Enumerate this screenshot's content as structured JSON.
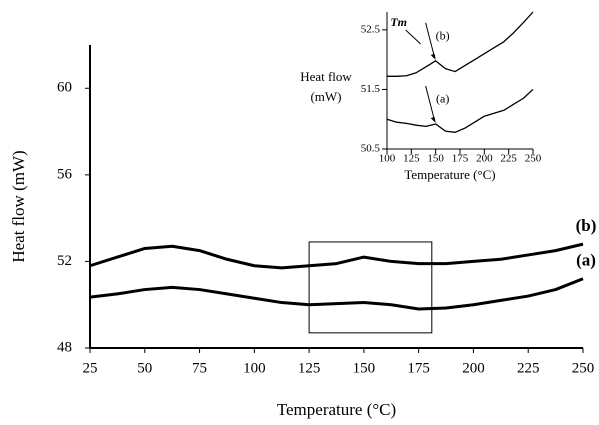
{
  "chart_data": [
    {
      "type": "line",
      "xlabel": "Temperature (°C)",
      "ylabel": "Heat flow (mW)",
      "x": [
        25,
        37.5,
        50,
        62.5,
        75,
        87.5,
        100,
        112.5,
        125,
        137.5,
        150,
        162.5,
        175,
        187.5,
        200,
        212.5,
        225,
        237.5,
        250
      ],
      "series": [
        {
          "name": "(b)",
          "color": "#000000",
          "values": [
            51.8,
            52.2,
            52.6,
            52.7,
            52.5,
            52.1,
            51.8,
            51.7,
            51.8,
            51.9,
            52.2,
            52.0,
            51.9,
            51.9,
            52.0,
            52.1,
            52.3,
            52.5,
            52.8
          ]
        },
        {
          "name": "(a)",
          "color": "#000000",
          "values": [
            50.35,
            50.5,
            50.7,
            50.8,
            50.7,
            50.5,
            50.3,
            50.1,
            50.0,
            50.05,
            50.1,
            50.0,
            49.8,
            49.85,
            50.0,
            50.2,
            50.4,
            50.7,
            51.2
          ]
        }
      ],
      "highlight": {
        "x": [
          125,
          181
        ],
        "y": [
          48.7,
          52.9
        ]
      },
      "xlim": [
        25,
        250
      ],
      "xticks": [
        25,
        50,
        75,
        100,
        125,
        150,
        175,
        200,
        225,
        250
      ],
      "ylim": [
        48,
        62
      ],
      "yticks": [
        48,
        52,
        56,
        60
      ]
    },
    {
      "type": "line",
      "xlabel": "Temperature (°C)",
      "ylabel": "Heat flow (mW)",
      "ylabel_lines": [
        "Heat flow",
        "(mW)"
      ],
      "annotation": "Tm",
      "x": [
        100,
        110,
        120,
        130,
        140,
        150,
        160,
        170,
        180,
        190,
        200,
        210,
        220,
        230,
        240,
        250
      ],
      "series": [
        {
          "name": "(b)",
          "color": "#000000",
          "values": [
            51.72,
            51.72,
            51.73,
            51.78,
            51.88,
            51.98,
            51.85,
            51.8,
            51.9,
            52.0,
            52.1,
            52.2,
            52.3,
            52.45,
            52.62,
            52.8
          ]
        },
        {
          "name": "(a)",
          "color": "#000000",
          "values": [
            51.0,
            50.95,
            50.93,
            50.9,
            50.88,
            50.92,
            50.8,
            50.78,
            50.85,
            50.95,
            51.05,
            51.1,
            51.15,
            51.25,
            51.35,
            51.5
          ]
        }
      ],
      "xlim": [
        100,
        250
      ],
      "xticks": [
        100,
        125,
        150,
        175,
        200,
        225,
        250
      ],
      "ylim": [
        50.5,
        52.8
      ],
      "yticks": [
        50.5,
        51.5,
        52.5
      ]
    }
  ]
}
